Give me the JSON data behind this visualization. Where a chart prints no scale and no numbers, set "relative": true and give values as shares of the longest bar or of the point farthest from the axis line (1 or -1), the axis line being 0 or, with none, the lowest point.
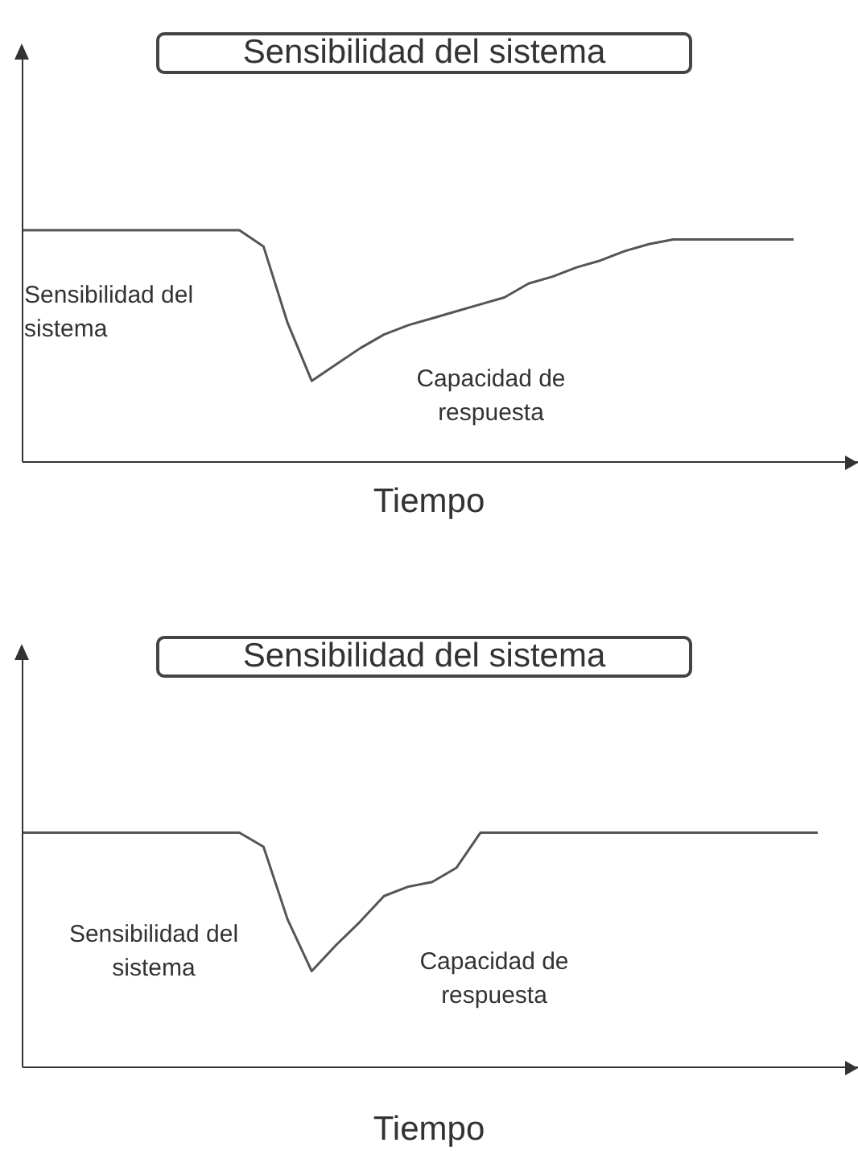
{
  "chart_data": [
    {
      "type": "line",
      "title": "Sensibilidad del sistema",
      "xlabel": "Tiempo",
      "relative": true,
      "annotations": [
        "Sensibilidad del sistema",
        "Capacidad de respuesta"
      ],
      "color": "#555555",
      "categories": [
        null,
        null,
        null,
        null,
        null,
        null,
        null,
        null,
        null,
        null,
        null,
        null,
        null,
        null,
        null,
        null,
        null,
        null,
        null,
        null,
        null,
        null,
        null,
        null,
        null,
        null,
        null,
        null,
        null,
        null,
        null,
        null,
        null
      ],
      "values": [
        1,
        1,
        1,
        1,
        1,
        1,
        1,
        1,
        1,
        1,
        0.93,
        0.6,
        0.35,
        0.42,
        0.49,
        0.55,
        0.59,
        0.62,
        0.65,
        0.68,
        0.71,
        0.77,
        0.8,
        0.84,
        0.87,
        0.91,
        0.94,
        0.96,
        0.96,
        0.96,
        0.96,
        0.96,
        0.96
      ]
    },
    {
      "type": "line",
      "title": "Sensibilidad del sistema",
      "xlabel": "Tiempo",
      "relative": true,
      "annotations": [
        "Sensibilidad del sistema",
        "Capacidad de respuesta"
      ],
      "color": "#555555",
      "categories": [
        null,
        null,
        null,
        null,
        null,
        null,
        null,
        null,
        null,
        null,
        null,
        null,
        null,
        null,
        null,
        null,
        null,
        null,
        null,
        null,
        null,
        null,
        null,
        null,
        null,
        null,
        null,
        null,
        null,
        null,
        null,
        null,
        null,
        null
      ],
      "values": [
        1,
        1,
        1,
        1,
        1,
        1,
        1,
        1,
        1,
        1,
        0.94,
        0.63,
        0.41,
        0.52,
        0.62,
        0.73,
        0.77,
        0.79,
        0.85,
        1,
        1,
        1,
        1,
        1,
        1,
        1,
        1,
        1,
        1,
        1,
        1,
        1,
        1,
        1
      ]
    }
  ]
}
